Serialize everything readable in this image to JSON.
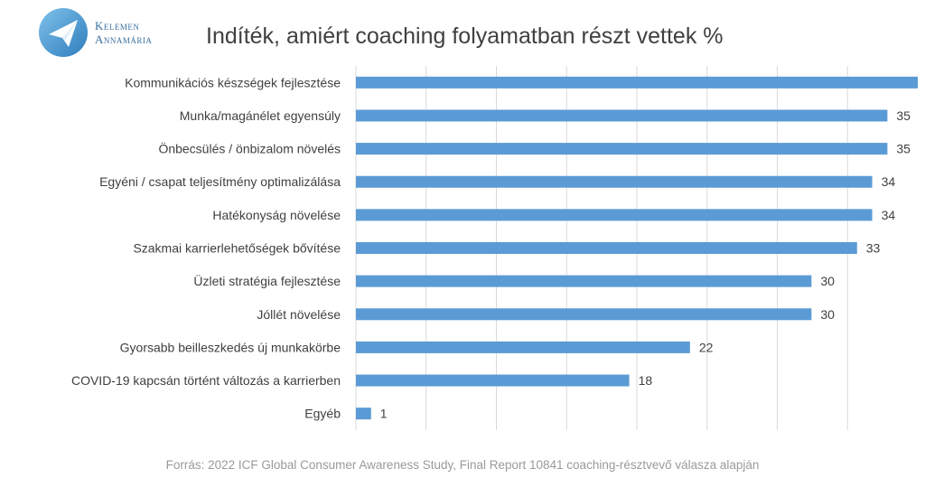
{
  "brand": {
    "name_line1": "Kelemen",
    "name_line2": "Annamária",
    "logo_icon": "paper-plane-icon",
    "logo_color": "#3b88c4"
  },
  "title": "Indíték, amiért coaching folyamatban részt vettek %",
  "source": "Forrás: 2022 ICF Global Consumer Awareness Study, Final Report 10841 coaching-résztvevő válasza alapján",
  "colors": {
    "bar": "#5b9bd5",
    "grid": "#d9d9d9",
    "label": "#404040",
    "source": "#9a9a9a"
  },
  "chart_data": {
    "type": "bar",
    "orientation": "horizontal",
    "title": "Indíték, amiért coaching folyamatban részt vettek %",
    "categories": [
      "Kommunikációs készségek fejlesztése",
      "Munka/magánélet egyensúly",
      "Önbecsülés / önbizalom növelés",
      "Egyéni / csapat teljesítmény optimalizálása",
      "Hatékonyság növelése",
      "Szakmai karrierlehetőségek bővítése",
      "Üzleti stratégia fejlesztése",
      "Jóllét növelése",
      "Gyorsabb beilleszkedés új munkakörbe",
      "COVID-19 kapcsán történt változás a karrierben",
      "Egyéb"
    ],
    "values": [
      37,
      35,
      35,
      34,
      34,
      33,
      30,
      30,
      22,
      18,
      1
    ],
    "xlim": [
      0,
      37
    ],
    "grid": true,
    "data_labels": true,
    "legend": "none"
  }
}
